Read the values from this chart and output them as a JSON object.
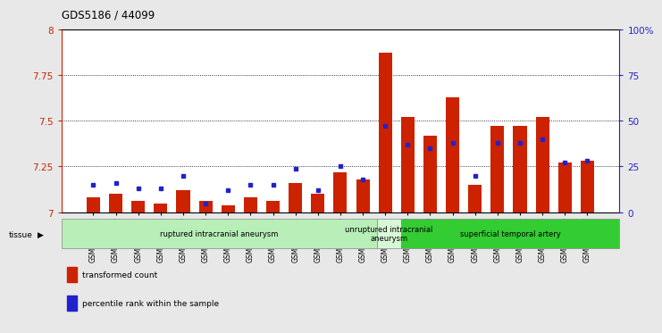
{
  "title": "GDS5186 / 44099",
  "samples": [
    "GSM1306885",
    "GSM1306886",
    "GSM1306887",
    "GSM1306888",
    "GSM1306889",
    "GSM1306890",
    "GSM1306891",
    "GSM1306892",
    "GSM1306893",
    "GSM1306894",
    "GSM1306895",
    "GSM1306896",
    "GSM1306897",
    "GSM1306898",
    "GSM1306899",
    "GSM1306900",
    "GSM1306901",
    "GSM1306902",
    "GSM1306903",
    "GSM1306904",
    "GSM1306905",
    "GSM1306906",
    "GSM1306907"
  ],
  "red_values": [
    7.08,
    7.1,
    7.06,
    7.05,
    7.12,
    7.06,
    7.04,
    7.08,
    7.06,
    7.16,
    7.1,
    7.22,
    7.18,
    7.87,
    7.52,
    7.42,
    7.63,
    7.15,
    7.47,
    7.47,
    7.52,
    7.27,
    7.28
  ],
  "blue_values": [
    15,
    16,
    13,
    13,
    20,
    5,
    12,
    15,
    15,
    24,
    12,
    25,
    18,
    47,
    37,
    35,
    38,
    20,
    38,
    38,
    40,
    27,
    28
  ],
  "groups": [
    {
      "label": "ruptured intracranial aneurysm",
      "start": 0,
      "end": 13,
      "color": "#b8eeb8"
    },
    {
      "label": "unruptured intracranial\naneurysm",
      "start": 13,
      "end": 14,
      "color": "#d8f8d8"
    },
    {
      "label": "superficial temporal artery",
      "start": 14,
      "end": 23,
      "color": "#33cc33"
    }
  ],
  "ylim_left": [
    7.0,
    8.0
  ],
  "ylim_right": [
    0,
    100
  ],
  "yticks_left": [
    7.0,
    7.25,
    7.5,
    7.75,
    8.0
  ],
  "yticks_right": [
    0,
    25,
    50,
    75,
    100
  ],
  "ytick_labels_left": [
    "7",
    "7.25",
    "7.5",
    "7.75",
    "8"
  ],
  "ytick_labels_right": [
    "0",
    "25",
    "50",
    "75",
    "100%"
  ],
  "bar_color": "#cc2200",
  "dot_color": "#2222cc",
  "plot_bg": "#ffffff",
  "fig_bg": "#e8e8e8",
  "legend_items": [
    {
      "label": "transformed count",
      "color": "#cc2200"
    },
    {
      "label": "percentile rank within the sample",
      "color": "#2222cc"
    }
  ]
}
